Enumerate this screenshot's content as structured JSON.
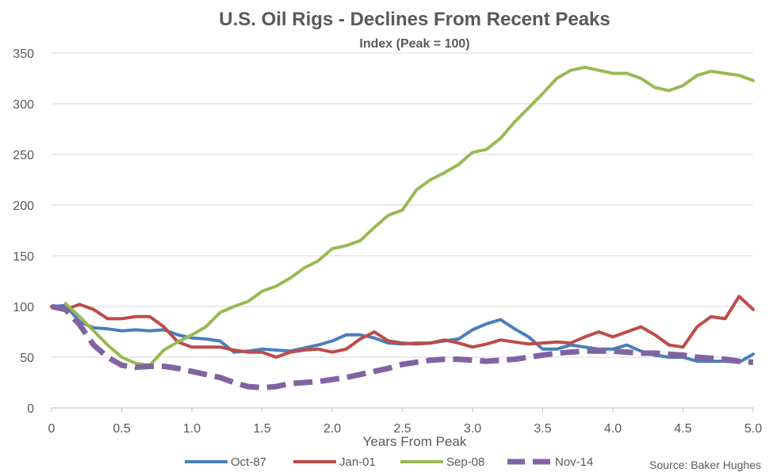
{
  "chart_data": {
    "type": "line",
    "title": "U.S. Oil Rigs - Declines From Recent Peaks",
    "subtitle": "Index (Peak = 100)",
    "xlabel": "Years From Peak",
    "ylabel": "",
    "xlim": [
      0,
      5
    ],
    "ylim": [
      0,
      350
    ],
    "x_ticks": [
      0,
      0.5,
      1,
      1.5,
      2,
      2.5,
      3,
      3.5,
      4,
      4.5,
      5
    ],
    "x_tick_labels": [
      "0",
      "0.5",
      "1.0",
      "1.5",
      "2.0",
      "2.5",
      "3.0",
      "3.5",
      "4.0",
      "4.5",
      "5.0"
    ],
    "y_ticks": [
      0,
      50,
      100,
      150,
      200,
      250,
      300,
      350
    ],
    "y_tick_labels": [
      "0",
      "50",
      "100",
      "150",
      "200",
      "250",
      "300",
      "350"
    ],
    "grid": "horizontal",
    "legend_position": "bottom",
    "source": "Source: Baker Hughes",
    "series": [
      {
        "name": "Oct-87",
        "color": "#4a7ebb",
        "dash": "solid",
        "x": [
          0,
          0.1,
          0.2,
          0.3,
          0.4,
          0.5,
          0.6,
          0.7,
          0.8,
          0.9,
          1.0,
          1.1,
          1.2,
          1.3,
          1.4,
          1.5,
          1.6,
          1.7,
          1.8,
          1.9,
          2.0,
          2.1,
          2.2,
          2.3,
          2.4,
          2.5,
          2.6,
          2.7,
          2.8,
          2.9,
          3.0,
          3.1,
          3.2,
          3.3,
          3.4,
          3.5,
          3.6,
          3.7,
          3.8,
          3.9,
          4.0,
          4.1,
          4.2,
          4.3,
          4.4,
          4.5,
          4.6,
          4.7,
          4.8,
          4.9,
          5.0
        ],
        "values": [
          100,
          101,
          85,
          79,
          78,
          76,
          77,
          76,
          77,
          72,
          69,
          68,
          66,
          55,
          56,
          58,
          57,
          56,
          59,
          62,
          66,
          72,
          72,
          69,
          64,
          63,
          64,
          64,
          66,
          68,
          77,
          83,
          87,
          78,
          70,
          58,
          58,
          62,
          60,
          58,
          58,
          62,
          56,
          52,
          50,
          50,
          46,
          46,
          46,
          45,
          53
        ]
      },
      {
        "name": "Jan-01",
        "color": "#be4b48",
        "dash": "solid",
        "x": [
          0,
          0.1,
          0.2,
          0.3,
          0.4,
          0.5,
          0.6,
          0.7,
          0.8,
          0.9,
          1.0,
          1.1,
          1.2,
          1.3,
          1.4,
          1.5,
          1.6,
          1.7,
          1.8,
          1.9,
          2.0,
          2.1,
          2.2,
          2.3,
          2.4,
          2.5,
          2.6,
          2.7,
          2.8,
          2.9,
          3.0,
          3.1,
          3.2,
          3.3,
          3.4,
          3.5,
          3.6,
          3.7,
          3.8,
          3.9,
          4.0,
          4.1,
          4.2,
          4.3,
          4.4,
          4.5,
          4.6,
          4.7,
          4.8,
          4.9,
          5.0
        ],
        "values": [
          100,
          97,
          102,
          97,
          88,
          88,
          90,
          90,
          80,
          65,
          60,
          60,
          60,
          57,
          55,
          55,
          50,
          55,
          57,
          58,
          55,
          58,
          68,
          75,
          66,
          64,
          63,
          64,
          67,
          64,
          60,
          63,
          67,
          65,
          63,
          64,
          65,
          64,
          70,
          75,
          70,
          75,
          80,
          72,
          62,
          60,
          80,
          90,
          88,
          110,
          97
        ]
      },
      {
        "name": "Sep-08",
        "color": "#98b954",
        "dash": "solid",
        "x": [
          0.1,
          0.2,
          0.3,
          0.4,
          0.5,
          0.6,
          0.7,
          0.8,
          0.9,
          1.0,
          1.1,
          1.2,
          1.3,
          1.4,
          1.5,
          1.6,
          1.7,
          1.8,
          1.9,
          2.0,
          2.1,
          2.2,
          2.3,
          2.4,
          2.5,
          2.6,
          2.7,
          2.8,
          2.9,
          3.0,
          3.1,
          3.2,
          3.3,
          3.4,
          3.5,
          3.6,
          3.7,
          3.8,
          3.9,
          4.0,
          4.1,
          4.2,
          4.3,
          4.4,
          4.5,
          4.6,
          4.7,
          4.8,
          4.9,
          5.0
        ],
        "values": [
          103,
          90,
          76,
          62,
          50,
          44,
          42,
          57,
          65,
          72,
          80,
          94,
          100,
          105,
          115,
          120,
          128,
          138,
          145,
          157,
          160,
          165,
          178,
          190,
          195,
          215,
          225,
          232,
          240,
          252,
          255,
          266,
          282,
          296,
          310,
          325,
          333,
          336,
          333,
          330,
          330,
          325,
          316,
          313,
          318,
          328,
          332,
          330,
          328,
          323
        ]
      },
      {
        "name": "Nov-14",
        "color": "#8064a2",
        "dash": "dashed",
        "x": [
          0,
          0.1,
          0.2,
          0.3,
          0.4,
          0.5,
          0.6,
          0.7,
          0.8,
          0.9,
          1.0,
          1.1,
          1.2,
          1.3,
          1.4,
          1.5,
          1.6,
          1.7,
          1.8,
          1.9,
          2.0,
          2.1,
          2.2,
          2.3,
          2.4,
          2.5,
          2.6,
          2.7,
          2.8,
          2.9,
          3.0,
          3.1,
          3.2,
          3.3,
          3.4,
          3.5,
          3.6,
          3.7,
          3.8,
          3.9,
          4.0,
          4.1,
          4.2,
          4.3,
          4.4,
          4.5,
          4.6,
          4.7,
          4.8,
          4.9,
          5.0
        ],
        "values": [
          100,
          97,
          82,
          62,
          50,
          42,
          40,
          41,
          41,
          39,
          36,
          33,
          30,
          25,
          21,
          20,
          21,
          24,
          25,
          26,
          28,
          30,
          33,
          36,
          39,
          43,
          45,
          47,
          48,
          48,
          47,
          46,
          47,
          48,
          50,
          52,
          54,
          55,
          56,
          56,
          56,
          55,
          54,
          54,
          53,
          52,
          50,
          49,
          48,
          46,
          45
        ]
      }
    ]
  }
}
